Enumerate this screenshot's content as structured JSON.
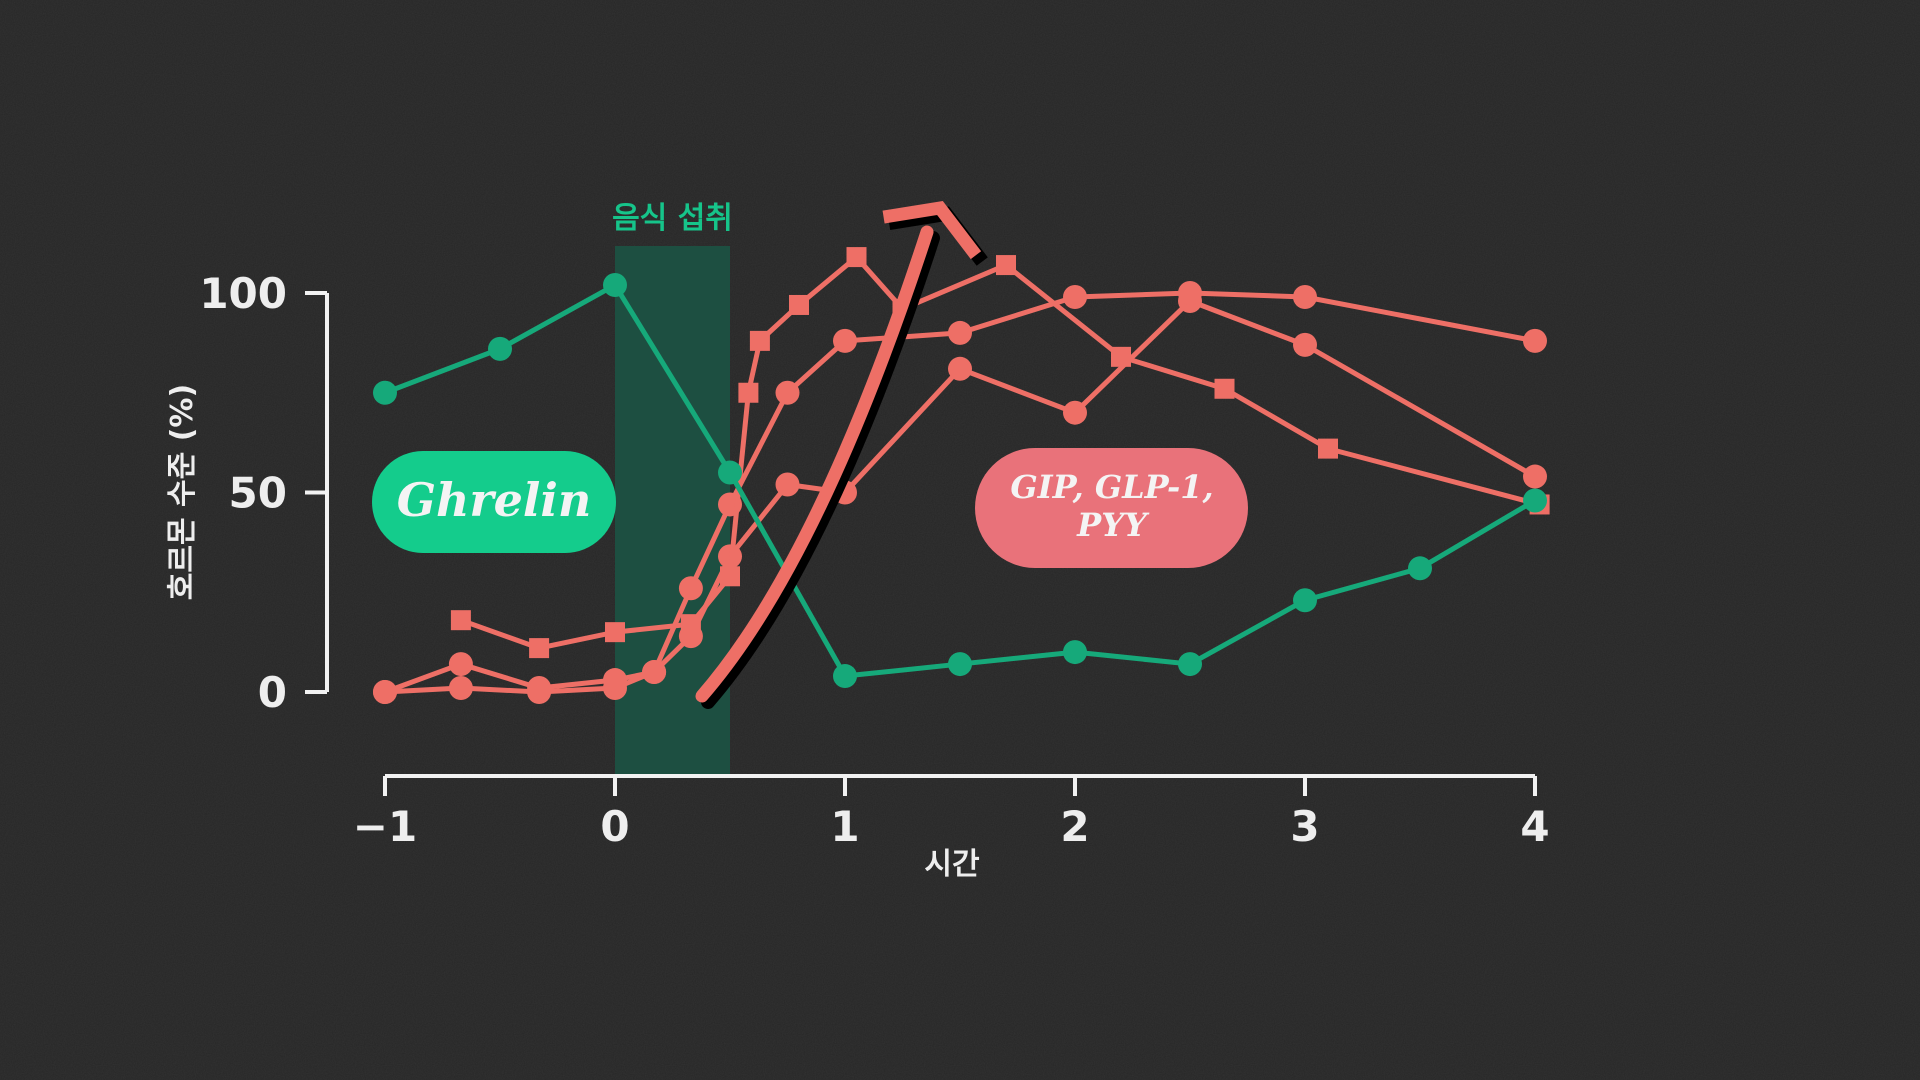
{
  "chart_data": {
    "type": "line",
    "xlabel": "시간",
    "ylabel": "호르몬 수준 (%)",
    "xlim": [
      -1,
      4
    ],
    "ylim": [
      0,
      100
    ],
    "x_ticks": [
      "−1",
      "0",
      "1",
      "2",
      "3",
      "4"
    ],
    "x_tick_values": [
      -1,
      0,
      1,
      2,
      3,
      4
    ],
    "y_ticks": [
      "0",
      "50",
      "100"
    ],
    "y_tick_values": [
      0,
      50,
      100
    ],
    "grid": false,
    "meal_window": {
      "label": "음식 섭취",
      "x_start": 0,
      "x_end": 0.5
    },
    "series": [
      {
        "name": "Ghrelin",
        "color": "#16a97a",
        "marker": "circle",
        "x": [
          -1,
          -0.5,
          0,
          0.5,
          1,
          1.5,
          2,
          2.5,
          3,
          3.5,
          4
        ],
        "y": [
          75,
          86,
          102,
          55,
          4,
          7,
          10,
          7,
          23,
          31,
          48
        ]
      },
      {
        "color": "#ee6f66",
        "marker": "circle",
        "x": [
          -1,
          -0.67,
          -0.33,
          0,
          0.17,
          0.33,
          0.5,
          0.75,
          1,
          1.5,
          2,
          2.5,
          3,
          4
        ],
        "y": [
          0,
          1,
          0,
          1,
          5,
          14,
          34,
          52,
          50,
          81,
          70,
          98,
          87,
          54
        ]
      },
      {
        "color": "#ee6f66",
        "marker": "circle",
        "x": [
          -1,
          -0.67,
          -0.33,
          0,
          0.17,
          0.33,
          0.5,
          0.75,
          1,
          1.5,
          2,
          2.5,
          3,
          4
        ],
        "y": [
          0,
          7,
          1,
          3,
          5,
          26,
          47,
          75,
          88,
          90,
          99,
          100,
          99,
          88
        ]
      },
      {
        "color": "#ee6f66",
        "marker": "square",
        "x": [
          -0.67,
          -0.33,
          0,
          0.33,
          0.5,
          0.58,
          0.63,
          0.8,
          1.05,
          1.25,
          1.7,
          2.2,
          2.65,
          3.1,
          4.02
        ],
        "y": [
          18,
          11,
          15,
          17,
          29,
          75,
          88,
          97,
          109,
          96,
          107,
          84,
          76,
          61,
          47
        ]
      }
    ],
    "labels": {
      "ghrelin": "Ghrelin",
      "incretin_line1": "GIP, GLP-1,",
      "incretin_line2": "PYY"
    },
    "colors": {
      "background": "#262626",
      "ghrelin": "#16a97a",
      "ghrelin_bubble": "#14cc8c",
      "incretin": "#ee6f66",
      "incretin_bubble": "#e9727a",
      "meal_band": "#1c5142",
      "axis": "#f2f2f2"
    }
  }
}
